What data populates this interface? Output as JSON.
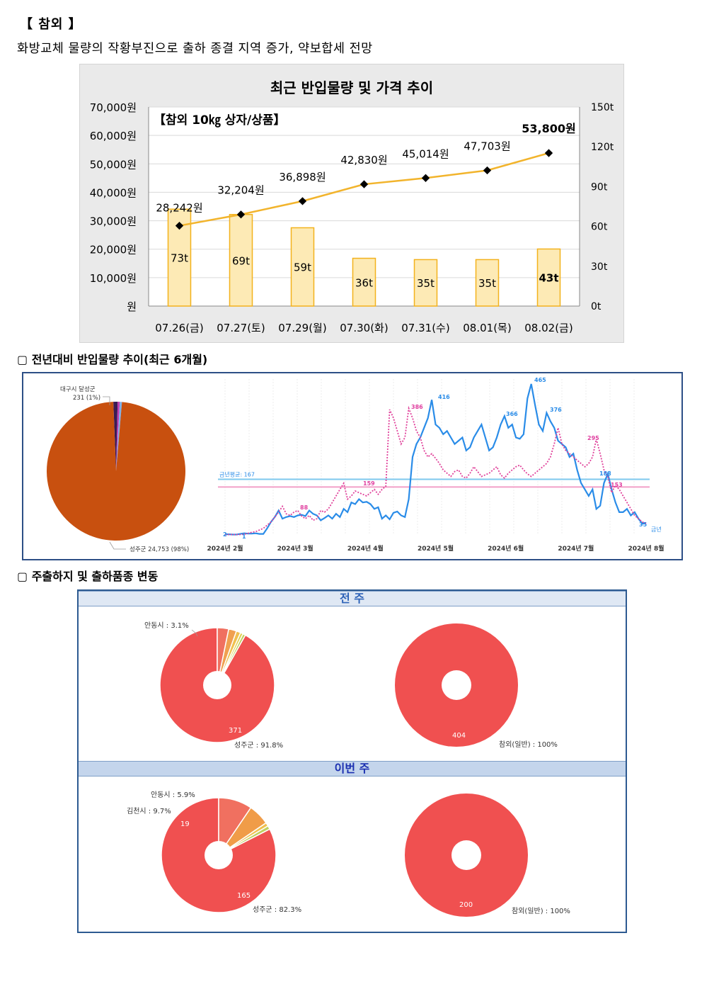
{
  "page": {
    "title": "【 참외 】",
    "subtitle": "화방교체 물량의 작황부진으로 출하 종결 지역 증가, 약보합세 전망"
  },
  "chart_data": [
    {
      "type": "bar",
      "title": "최근 반입물량 및 가격 추이",
      "note": "【참외 10㎏ 상자/상품】",
      "categories": [
        "07.26(금)",
        "07.27(토)",
        "07.29(월)",
        "07.30(화)",
        "07.31(수)",
        "08.01(목)",
        "08.02(금)"
      ],
      "series": [
        {
          "name": "반입물량",
          "type": "bar",
          "axis": "right",
          "values": [
            73,
            69,
            59,
            36,
            35,
            35,
            43
          ],
          "labels": [
            "73t",
            "69t",
            "59t",
            "36t",
            "35t",
            "35t",
            "43t"
          ]
        },
        {
          "name": "가격",
          "type": "line",
          "axis": "left",
          "values": [
            28242,
            32204,
            36898,
            42830,
            45014,
            47703,
            53800
          ],
          "labels": [
            "28,242원",
            "32,204원",
            "36,898원",
            "42,830원",
            "45,014원",
            "47,703원",
            "53,800원"
          ]
        }
      ],
      "y_left_ticks": [
        "70,000원",
        "60,000원",
        "50,000원",
        "40,000원",
        "30,000원",
        "20,000원",
        "10,000원",
        "원"
      ],
      "y_right_ticks": [
        "150t",
        "120t",
        "90t",
        "60t",
        "30t",
        "0t"
      ],
      "ylim_left": [
        0,
        70000
      ],
      "ylim_right": [
        0,
        150
      ],
      "colors": {
        "bar_fill": "#fdeab5",
        "bar_stroke": "#f3b21c",
        "line": "#f2b42c",
        "marker": "#000000"
      }
    },
    {
      "type": "pie",
      "slices": [
        {
          "label": "성주군 24,753 (98%)",
          "value": 98,
          "color": "#c8500f"
        },
        {
          "label": "대구시 달성군 231 (1%)",
          "value": 1,
          "color": "#3a1b54"
        },
        {
          "label": "",
          "value": 0.5,
          "color": "#c03ab0"
        },
        {
          "label": "",
          "value": 0.5,
          "color": "#7fb0e8"
        }
      ],
      "legend": [
        "대구시 달성군",
        "231 (1%)",
        "성주군 24,753 (98%)"
      ]
    },
    {
      "type": "line",
      "x_ticks": [
        "2024년 2월",
        "2024년 3월",
        "2024년 4월",
        "2024년 5월",
        "2024년 6월",
        "2024년 7월",
        "2024년 8월"
      ],
      "ylim": [
        0,
        480
      ],
      "series": [
        {
          "name": "금년",
          "color": "#2a8ce8",
          "style": "solid",
          "values": [
            2,
            2,
            1,
            1,
            3,
            5,
            4,
            4,
            5,
            3,
            3,
            20,
            40,
            55,
            75,
            50,
            55,
            58,
            55,
            60,
            62,
            58,
            75,
            65,
            60,
            45,
            52,
            60,
            50,
            65,
            55,
            80,
            70,
            100,
            95,
            110,
            100,
            102,
            95,
            80,
            85,
            50,
            60,
            48,
            68,
            72,
            60,
            55,
            110,
            240,
            280,
            300,
            330,
            360,
            416,
            340,
            330,
            310,
            320,
            300,
            280,
            290,
            300,
            260,
            270,
            300,
            320,
            340,
            300,
            260,
            270,
            300,
            340,
            366,
            330,
            340,
            300,
            296,
            310,
            420,
            465,
            400,
            340,
            320,
            376,
            350,
            330,
            290,
            280,
            270,
            240,
            250,
            200,
            160,
            140,
            120,
            140,
            80,
            90,
            160,
            188,
            140,
            100,
            70,
            70,
            80,
            60,
            70,
            50,
            35,
            35
          ]
        },
        {
          "name": "전년",
          "color": "#e0409a",
          "style": "dotted",
          "values": [
            1,
            1,
            1,
            1,
            1,
            2,
            5,
            8,
            10,
            15,
            20,
            30,
            40,
            55,
            70,
            88,
            65,
            60,
            70,
            75,
            58,
            50,
            60,
            45,
            50,
            75,
            70,
            80,
            100,
            120,
            140,
            159,
            110,
            120,
            135,
            130,
            125,
            120,
            130,
            140,
            125,
            140,
            150,
            386,
            360,
            320,
            280,
            300,
            390,
            360,
            320,
            300,
            260,
            240,
            250,
            236,
            220,
            200,
            190,
            180,
            195,
            200,
            180,
            175,
            190,
            210,
            195,
            180,
            185,
            190,
            200,
            210,
            185,
            175,
            190,
            200,
            210,
            215,
            200,
            188,
            180,
            190,
            200,
            210,
            220,
            240,
            280,
            330,
            280,
            260,
            250,
            240,
            230,
            220,
            210,
            220,
            240,
            295,
            250,
            200,
            180,
            130,
            153,
            140,
            120,
            100,
            80,
            60,
            50,
            40,
            35
          ]
        }
      ],
      "labels": {
        "peak": "465",
        "a": "416",
        "b": "366",
        "c": "376",
        "d": "188",
        "e": "35",
        "f": "2",
        "g": "1",
        "h": "88",
        "i": "159",
        "j": "386",
        "k": "295",
        "l": "153"
      },
      "avg_label": "금년평균: 167",
      "end_label": "금년"
    },
    {
      "type": "pie",
      "group": "전 주",
      "charts": [
        {
          "slices": [
            {
              "label": "성주군 : 91.8%",
              "value": 371,
              "value_label": "371",
              "color": "#f05050"
            },
            {
              "label": "안동시 : 3.1%",
              "value": 13,
              "color": "#f07060"
            },
            {
              "label": "",
              "value": 9,
              "color": "#f0a050"
            },
            {
              "label": "",
              "value": 5,
              "color": "#f0c050"
            },
            {
              "label": "",
              "value": 3,
              "color": "#e0d050"
            },
            {
              "label": "",
              "value": 3,
              "color": "#c0d060"
            }
          ]
        },
        {
          "slices": [
            {
              "label": "참외(일반) : 100%",
              "value": 404,
              "value_label": "404",
              "color": "#f05050"
            }
          ]
        }
      ]
    },
    {
      "type": "pie",
      "group": "이번 주",
      "charts": [
        {
          "slices": [
            {
              "label": "성주군 : 82.3%",
              "value": 165,
              "value_label": "165",
              "color": "#f05050"
            },
            {
              "label": "김천시 : 9.7%",
              "value": 19,
              "value_label": "19",
              "color": "#f07060"
            },
            {
              "label": "안동시 : 5.9%",
              "value": 12,
              "color": "#f09c48"
            },
            {
              "label": "",
              "value": 2,
              "color": "#f0c050"
            },
            {
              "label": "",
              "value": 2,
              "color": "#c0d060"
            }
          ]
        },
        {
          "slices": [
            {
              "label": "참외(일반) : 100%",
              "value": 200,
              "value_label": "200",
              "color": "#f05050"
            }
          ]
        }
      ]
    }
  ],
  "sections": {
    "trend_heading": "▢  전년대비 반입물량 추이(최근 6개월)",
    "ship_heading": "▢  주출하지 및 출하품종 변동",
    "band_prev": "전  주",
    "band_cur": "이번  주"
  }
}
